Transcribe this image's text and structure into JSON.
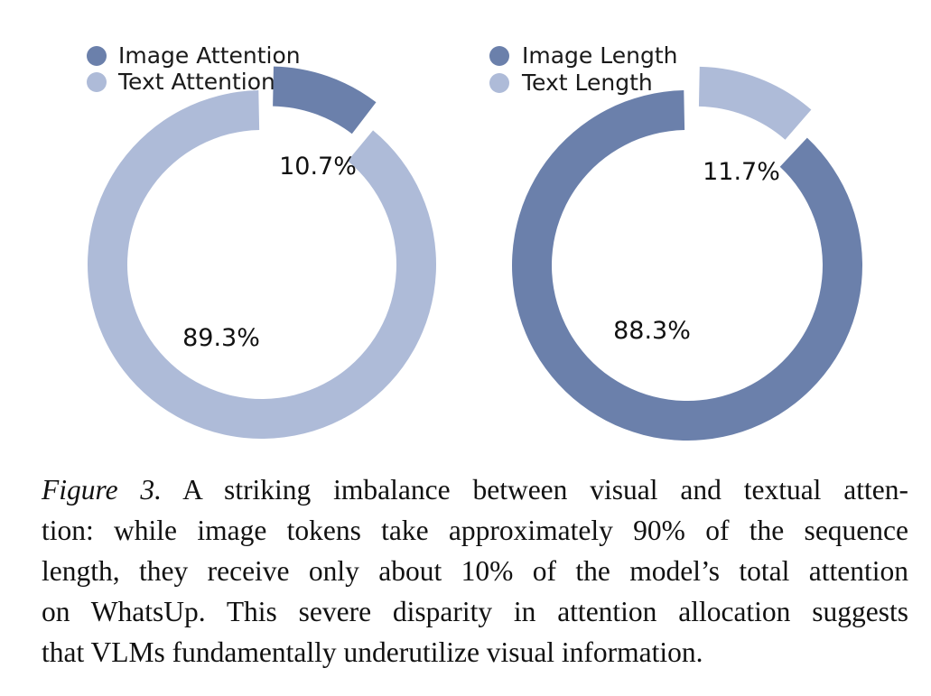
{
  "colors": {
    "image": "#6b80ab",
    "text": "#aebbd8"
  },
  "chart_data": [
    {
      "type": "pie",
      "title": "",
      "legend": [
        "Image Attention",
        "Text Attention"
      ],
      "slices": [
        {
          "label": "Image Attention",
          "value": 10.7,
          "display": "10.7%"
        },
        {
          "label": "Text Attention",
          "value": 89.3,
          "display": "89.3%"
        }
      ]
    },
    {
      "type": "pie",
      "title": "",
      "legend": [
        "Image Length",
        "Text Length"
      ],
      "slices": [
        {
          "label": "Text Length",
          "value": 11.7,
          "display": "11.7%"
        },
        {
          "label": "Image Length",
          "value": 88.3,
          "display": "88.3%"
        }
      ]
    }
  ],
  "caption": {
    "label": "Figure 3.",
    "lines": [
      " A striking imbalance between visual and textual atten-",
      "tion: while image tokens take approximately 90% of the sequence",
      "length, they receive only about 10% of the model’s total attention",
      "on WhatsUp. This severe disparity in attention allocation suggests",
      "that VLMs fundamentally underutilize visual information."
    ]
  }
}
